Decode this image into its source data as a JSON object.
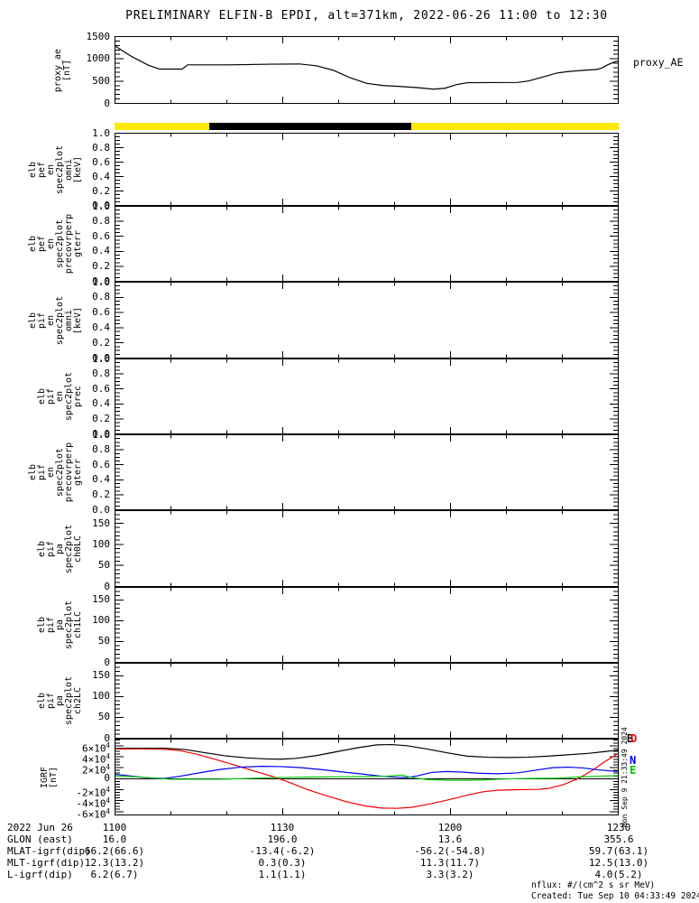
{
  "title": "PRELIMINARY ELFIN-B EPDI, alt=371km, 2022-06-26 11:00 to 12:30",
  "side_timestamp": "Mon Sep 9 21:33:49 2024",
  "colors": {
    "background": "#ffffff",
    "foreground": "#000000",
    "bar_yellow": "#ffe800",
    "bar_black": "#000000",
    "igrf_b": "#000000",
    "igrf_d": "#f40000",
    "igrf_n": "#0000f4",
    "igrf_e": "#00c800"
  },
  "xaxis": {
    "range_minutes": [
      0,
      90
    ],
    "minor_step_min": 10,
    "major_ticks": [
      {
        "min": 0,
        "label": "1100"
      },
      {
        "min": 30,
        "label": "1130"
      },
      {
        "min": 60,
        "label": "1200"
      },
      {
        "min": 90,
        "label": "1230"
      }
    ]
  },
  "chart_data": [
    {
      "id": "proxy_ae",
      "type": "line",
      "left_label_lines": [
        "proxy_ae",
        "[nT]"
      ],
      "right_label": "proxy_AE",
      "yrange": [
        0,
        1500
      ],
      "yminor": 100,
      "yticks": [
        {
          "v": 1500,
          "t": "1500"
        },
        {
          "v": 1000,
          "t": "1000"
        },
        {
          "v": 500,
          "t": "500"
        },
        {
          "v": 0,
          "t": "0"
        }
      ],
      "series": [
        {
          "name": "proxy_AE",
          "color": "#000000",
          "x": [
            0,
            3,
            6,
            8,
            12,
            13,
            20,
            28,
            33,
            36,
            39,
            42,
            45,
            48,
            51,
            54,
            57,
            59,
            61,
            63,
            72,
            74,
            77,
            79,
            81,
            84,
            86,
            87,
            88,
            89,
            90
          ],
          "y": [
            1290,
            1050,
            855,
            770,
            770,
            865,
            865,
            880,
            885,
            845,
            745,
            580,
            450,
            400,
            380,
            355,
            320,
            340,
            420,
            465,
            470,
            505,
            610,
            680,
            715,
            745,
            760,
            790,
            860,
            915,
            955
          ]
        }
      ]
    },
    {
      "id": "orbit_bar",
      "type": "strip",
      "segments": [
        {
          "from": 0.0,
          "to": 0.188,
          "color": "#ffe800"
        },
        {
          "from": 0.188,
          "to": 0.589,
          "color": "#000000"
        },
        {
          "from": 0.589,
          "to": 1.0,
          "color": "#ffe800"
        }
      ]
    },
    {
      "id": "elb_pef_en_omni",
      "type": "empty",
      "left_label_lines": [
        "elb",
        "pef",
        "en",
        "spec2plot",
        "omni",
        "[keV]"
      ],
      "yrange": [
        0,
        1
      ],
      "yminor": 0.05,
      "yticks": [
        {
          "v": 1.0,
          "t": "1.0"
        },
        {
          "v": 0.8,
          "t": "0.8"
        },
        {
          "v": 0.6,
          "t": "0.6"
        },
        {
          "v": 0.4,
          "t": "0.4"
        },
        {
          "v": 0.2,
          "t": "0.2"
        },
        {
          "v": 0.0,
          "t": "0.0"
        }
      ]
    },
    {
      "id": "elb_pef_en_precovrperp_gterr",
      "type": "empty",
      "left_label_lines": [
        "elb",
        "pef",
        "en",
        "spec2plot",
        "precovrperp",
        "gterr"
      ],
      "yrange": [
        0,
        1
      ],
      "yminor": 0.05,
      "yticks": [
        {
          "v": 1.0,
          "t": "1.0"
        },
        {
          "v": 0.8,
          "t": "0.8"
        },
        {
          "v": 0.6,
          "t": "0.6"
        },
        {
          "v": 0.4,
          "t": "0.4"
        },
        {
          "v": 0.2,
          "t": "0.2"
        },
        {
          "v": 0.0,
          "t": "0.0"
        }
      ]
    },
    {
      "id": "elb_pif_en_omni",
      "type": "empty",
      "left_label_lines": [
        "elb",
        "pif",
        "en",
        "spec2plot",
        "omni",
        "[keV]"
      ],
      "yrange": [
        0,
        1
      ],
      "yminor": 0.05,
      "yticks": [
        {
          "v": 1.0,
          "t": "1.0"
        },
        {
          "v": 0.8,
          "t": "0.8"
        },
        {
          "v": 0.6,
          "t": "0.6"
        },
        {
          "v": 0.4,
          "t": "0.4"
        },
        {
          "v": 0.2,
          "t": "0.2"
        },
        {
          "v": 0.0,
          "t": "0.0"
        }
      ]
    },
    {
      "id": "elb_pif_en_prec",
      "type": "empty",
      "left_label_lines": [
        "elb",
        "pif",
        "en",
        "spec2plot",
        "prec"
      ],
      "yrange": [
        0,
        1
      ],
      "yminor": 0.05,
      "yticks": [
        {
          "v": 1.0,
          "t": "1.0"
        },
        {
          "v": 0.8,
          "t": "0.8"
        },
        {
          "v": 0.6,
          "t": "0.6"
        },
        {
          "v": 0.4,
          "t": "0.4"
        },
        {
          "v": 0.2,
          "t": "0.2"
        },
        {
          "v": 0.0,
          "t": "0.0"
        }
      ]
    },
    {
      "id": "elb_pif_en_precovrperp_gterr",
      "type": "empty",
      "left_label_lines": [
        "elb",
        "pif",
        "en",
        "spec2plot",
        "precovrperp",
        "gterr"
      ],
      "yrange": [
        0,
        1
      ],
      "yminor": 0.05,
      "yticks": [
        {
          "v": 1.0,
          "t": "1.0"
        },
        {
          "v": 0.8,
          "t": "0.8"
        },
        {
          "v": 0.6,
          "t": "0.6"
        },
        {
          "v": 0.4,
          "t": "0.4"
        },
        {
          "v": 0.2,
          "t": "0.2"
        },
        {
          "v": 0.0,
          "t": "0.0"
        }
      ]
    },
    {
      "id": "elb_pif_pa_ch0LC",
      "type": "empty",
      "left_label_lines": [
        "elb",
        "pif",
        "pa",
        "spec2plot",
        "ch0LC"
      ],
      "yrange": [
        0,
        180
      ],
      "yminor": 10,
      "yticks": [
        {
          "v": 150,
          "t": "150"
        },
        {
          "v": 100,
          "t": "100"
        },
        {
          "v": 50,
          "t": "50"
        },
        {
          "v": 0,
          "t": "0"
        }
      ]
    },
    {
      "id": "elb_pif_pa_ch1LC",
      "type": "empty",
      "left_label_lines": [
        "elb",
        "pif",
        "pa",
        "spec2plot",
        "ch1LC"
      ],
      "yrange": [
        0,
        180
      ],
      "yminor": 10,
      "yticks": [
        {
          "v": 150,
          "t": "150"
        },
        {
          "v": 100,
          "t": "100"
        },
        {
          "v": 50,
          "t": "50"
        },
        {
          "v": 0,
          "t": "0"
        }
      ]
    },
    {
      "id": "elb_pif_pa_ch2LC",
      "type": "empty",
      "left_label_lines": [
        "elb",
        "pif",
        "pa",
        "spec2plot",
        "ch2LC"
      ],
      "yrange": [
        0,
        180
      ],
      "yminor": 10,
      "yticks": [
        {
          "v": 150,
          "t": "150"
        },
        {
          "v": 100,
          "t": "100"
        },
        {
          "v": 50,
          "t": "50"
        },
        {
          "v": 0,
          "t": "0"
        }
      ]
    },
    {
      "id": "igrf",
      "type": "line",
      "left_label_lines": [
        "IGRF",
        "[nT]"
      ],
      "yrange": [
        -66000,
        72000
      ],
      "yminor": 5000,
      "zero_line": true,
      "yticks": [
        {
          "v": 60000,
          "t": "6×10^4"
        },
        {
          "v": 40000,
          "t": "4×10^4"
        },
        {
          "v": 20000,
          "t": "2×10^4"
        },
        {
          "v": 0,
          "t": "0"
        },
        {
          "v": -20000,
          "t": "-2×10^4"
        },
        {
          "v": -40000,
          "t": "-4×10^4"
        },
        {
          "v": -60000,
          "t": "-6×10^4"
        }
      ],
      "legend": [
        {
          "label": "B",
          "color": "#000000"
        },
        {
          "label": "D",
          "color": "#f40000"
        },
        {
          "label": "N",
          "color": "#0000f4"
        },
        {
          "label": "E",
          "color": "#00c800"
        }
      ],
      "series": [
        {
          "name": "B",
          "color": "#000000",
          "x": [
            0,
            4.5,
            9,
            12.6,
            16.2,
            19.8,
            23.4,
            27,
            29.7,
            32.4,
            36,
            39.6,
            43.2,
            46.8,
            49.5,
            52.2,
            55.8,
            59.4,
            63,
            66.6,
            70.2,
            73.8,
            77.4,
            81,
            84.6,
            87.3,
            90
          ],
          "y": [
            55000,
            55500,
            55500,
            53000,
            47000,
            41500,
            38000,
            36000,
            35500,
            37000,
            42000,
            49000,
            56000,
            61500,
            62000,
            60000,
            54000,
            47000,
            41000,
            39000,
            38500,
            39000,
            41000,
            43500,
            46000,
            49000,
            52000
          ]
        },
        {
          "name": "D",
          "color": "#f40000",
          "x": [
            0,
            5.4,
            9,
            11.7,
            14.4,
            18,
            21.6,
            25.2,
            28.8,
            31.5,
            34.2,
            37.8,
            41.4,
            45,
            47.7,
            50.4,
            53.1,
            55.8,
            59.4,
            63,
            65.7,
            68.4,
            72,
            75.6,
            77.4,
            80.1,
            82.8,
            85.5,
            87.3,
            90
          ],
          "y": [
            54000,
            54000,
            53500,
            51000,
            45000,
            35000,
            24000,
            13000,
            2000,
            -8000,
            -19000,
            -31000,
            -42000,
            -50000,
            -53500,
            -54000,
            -52000,
            -47000,
            -39000,
            -30000,
            -24000,
            -21000,
            -20000,
            -19500,
            -18000,
            -11000,
            0,
            16000,
            29000,
            46000
          ]
        },
        {
          "name": "N",
          "color": "#0000f4",
          "x": [
            0,
            3.6,
            6.3,
            9,
            11.7,
            15.3,
            18.9,
            22.5,
            26.1,
            29.7,
            33.3,
            36.9,
            40.5,
            44.1,
            47.7,
            50.4,
            52.2,
            54,
            56.7,
            59.4,
            62.1,
            64.8,
            68.4,
            72,
            75.6,
            78.3,
            81,
            83.7,
            86.4,
            90
          ],
          "y": [
            8000,
            4000,
            1000,
            500,
            4500,
            11000,
            17000,
            21000,
            22500,
            22000,
            20000,
            16500,
            12500,
            8500,
            4500,
            2500,
            2000,
            5000,
            11500,
            13000,
            12000,
            10000,
            9000,
            10500,
            16000,
            20000,
            21000,
            19500,
            16000,
            13000
          ]
        },
        {
          "name": "E",
          "color": "#00c800",
          "x": [
            0,
            3.6,
            7.2,
            9.9,
            14.4,
            18,
            22.5,
            27,
            31.5,
            36,
            40.5,
            45,
            48.6,
            51.3,
            53.1,
            55.8,
            59.4,
            63,
            65.7,
            68.4,
            72,
            75.6,
            79.2,
            82.8,
            86.4,
            90
          ],
          "y": [
            5000,
            3500,
            1000,
            -1000,
            -1000,
            -1000,
            0,
            1500,
            2500,
            3000,
            3500,
            4000,
            4500,
            6500,
            2000,
            -1500,
            -3000,
            -3000,
            -2500,
            -1000,
            0,
            500,
            1000,
            3000,
            4500,
            5500
          ]
        }
      ]
    }
  ],
  "footer": {
    "rows": [
      {
        "label": "2022 Jun 26",
        "values": [
          "1100",
          "1130",
          "1200",
          "1230"
        ]
      },
      {
        "label": "GLON (east)",
        "values": [
          "16.0",
          "196.0",
          "13.6",
          "355.6"
        ]
      },
      {
        "label": "MLAT-igrf(dip)",
        "values": [
          "66.2(66.6)",
          "-13.4(-6.2)",
          "-56.2(-54.8)",
          "59.7(63.1)"
        ]
      },
      {
        "label": "MLT-igrf(dip)",
        "values": [
          "12.3(13.2)",
          "0.3(0.3)",
          "11.3(11.7)",
          "12.5(13.0)"
        ]
      },
      {
        "label": "L-igrf(dip)",
        "values": [
          "6.2(6.7)",
          "1.1(1.1)",
          "3.3(3.2)",
          "4.0(5.2)"
        ]
      }
    ],
    "notes": [
      "nflux: #/(cm^2 s sr MeV)",
      "Created: Tue Sep 10 04:33:49 2024"
    ]
  }
}
